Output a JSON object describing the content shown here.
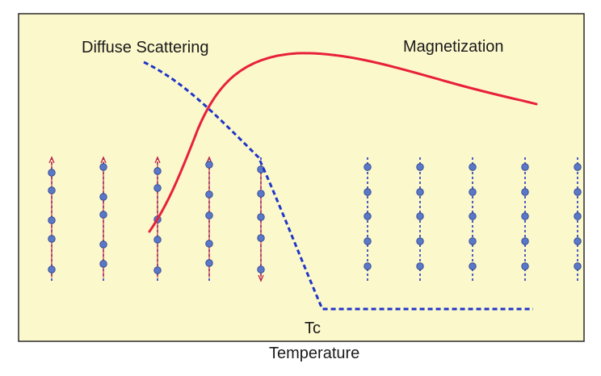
{
  "labels": {
    "diffuse_scattering": "Diffuse Scattering",
    "magnetization": "Magnetization",
    "tc": "Tc",
    "temperature": "Temperature"
  },
  "colors": {
    "background": "#fbf8cc",
    "frame": "#2a2a2a",
    "magnetization_curve": "#e8203a",
    "scattering_curve": "#1f35c8",
    "spin_dot": "#5a78c8",
    "spin_axis": "#2338c0",
    "spin_arrow": "#c81e3c"
  },
  "spin_columns": {
    "ordered_side": [
      {
        "dots": 5,
        "arrowhead": "up"
      },
      {
        "dots": 5,
        "arrowhead": "up"
      },
      {
        "dots": 5,
        "arrowhead": "up"
      },
      {
        "dots": 5,
        "arrowhead": "up"
      },
      {
        "dots": 5,
        "arrowhead": "down"
      }
    ],
    "disordered_side": [
      {
        "dots": 5,
        "arrowhead": "none"
      },
      {
        "dots": 5,
        "arrowhead": "none"
      },
      {
        "dots": 5,
        "arrowhead": "none"
      },
      {
        "dots": 5,
        "arrowhead": "none"
      },
      {
        "dots": 5,
        "arrowhead": "none"
      }
    ]
  }
}
